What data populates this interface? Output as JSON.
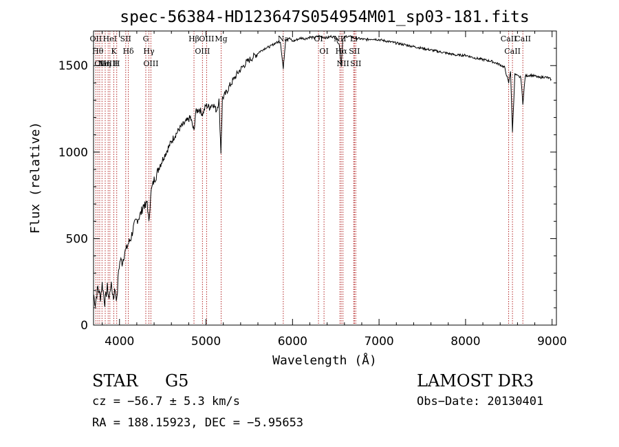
{
  "chart_data": {
    "type": "line",
    "title": "spec-56384-HD123647S054954M01_sp03-181.fits",
    "xlabel": "Wavelength (Å)",
    "ylabel": "Flux (relative)",
    "xlim": [
      3700,
      9050
    ],
    "ylim": [
      0,
      1700
    ],
    "xticks": [
      4000,
      5000,
      6000,
      7000,
      8000,
      9000
    ],
    "yticks": [
      0,
      500,
      1000,
      1500
    ],
    "series": [
      {
        "x": [
          3700,
          3720,
          3750,
          3780,
          3800,
          3830,
          3860,
          3880,
          3900,
          3930,
          3950,
          3970,
          3990,
          4010,
          4030,
          4060,
          4080,
          4100,
          4130,
          4160,
          4190,
          4220,
          4250,
          4280,
          4300,
          4320,
          4340,
          4360,
          4380,
          4400,
          4430,
          4460,
          4500,
          4540,
          4580,
          4620,
          4660,
          4700,
          4740,
          4780,
          4820,
          4861,
          4880,
          4920,
          4960,
          5000,
          5040,
          5080,
          5120,
          5150,
          5172,
          5190,
          5230,
          5270,
          5320,
          5370,
          5420,
          5470,
          5520,
          5570,
          5620,
          5680,
          5740,
          5800,
          5860,
          5893,
          5920,
          5960,
          6000,
          6050,
          6100,
          6150,
          6200,
          6250,
          6300,
          6350,
          6400,
          6450,
          6500,
          6540,
          6563,
          6580,
          6620,
          6680,
          6720,
          6780,
          6850,
          6920,
          7000,
          7100,
          7200,
          7300,
          7400,
          7500,
          7600,
          7700,
          7800,
          7900,
          8000,
          8100,
          8200,
          8300,
          8400,
          8450,
          8498,
          8520,
          8542,
          8570,
          8600,
          8640,
          8662,
          8690,
          8750,
          8800,
          8850,
          8900,
          8950,
          8990
        ],
        "y": [
          180,
          120,
          220,
          160,
          240,
          130,
          220,
          150,
          240,
          160,
          210,
          140,
          320,
          380,
          360,
          420,
          440,
          470,
          500,
          560,
          600,
          620,
          650,
          700,
          680,
          720,
          580,
          760,
          800,
          840,
          870,
          920,
          960,
          1000,
          1040,
          1080,
          1110,
          1140,
          1160,
          1180,
          1200,
          1120,
          1230,
          1250,
          1220,
          1270,
          1260,
          1280,
          1240,
          1300,
          1000,
          1310,
          1340,
          1380,
          1420,
          1460,
          1490,
          1520,
          1540,
          1560,
          1580,
          1600,
          1610,
          1630,
          1640,
          1480,
          1650,
          1660,
          1640,
          1650,
          1660,
          1655,
          1665,
          1660,
          1670,
          1665,
          1660,
          1670,
          1660,
          1620,
          1500,
          1650,
          1670,
          1665,
          1660,
          1655,
          1650,
          1655,
          1650,
          1640,
          1630,
          1620,
          1610,
          1600,
          1590,
          1580,
          1570,
          1560,
          1560,
          1545,
          1535,
          1525,
          1505,
          1490,
          1400,
          1470,
          1120,
          1450,
          1440,
          1430,
          1280,
          1440,
          1445,
          1440,
          1430,
          1435,
          1430,
          1420
        ]
      }
    ],
    "lines": [
      {
        "x": 3727,
        "label": "OII"
      },
      {
        "x": 3750,
        "label": "Hθ"
      },
      {
        "x": 3771,
        "label": ""
      },
      {
        "x": 3798,
        "label": "OIII"
      },
      {
        "x": 3835,
        "label": "Hη"
      },
      {
        "x": 3869,
        "label": "NeIII"
      },
      {
        "x": 3889,
        "label": "HeI"
      },
      {
        "x": 3934,
        "label": "K"
      },
      {
        "x": 3968,
        "label": "H"
      },
      {
        "x": 4072,
        "label": "SII"
      },
      {
        "x": 4102,
        "label": "Hδ"
      },
      {
        "x": 4304,
        "label": "G"
      },
      {
        "x": 4340,
        "label": "Hγ"
      },
      {
        "x": 4363,
        "label": "OIII"
      },
      {
        "x": 4861,
        "label": "Hβ"
      },
      {
        "x": 4959,
        "label": "OIII"
      },
      {
        "x": 5007,
        "label": "OIII"
      },
      {
        "x": 5175,
        "label": "Mg"
      },
      {
        "x": 5893,
        "label": "Na"
      },
      {
        "x": 6300,
        "label": "OI"
      },
      {
        "x": 6364,
        "label": "OI"
      },
      {
        "x": 6548,
        "label": "NII"
      },
      {
        "x": 6563,
        "label": "Hα"
      },
      {
        "x": 6583,
        "label": "NII"
      },
      {
        "x": 6707,
        "label": "Li"
      },
      {
        "x": 6716,
        "label": "SII"
      },
      {
        "x": 6731,
        "label": "SII"
      },
      {
        "x": 8498,
        "label": "CaII"
      },
      {
        "x": 8542,
        "label": "CaII"
      },
      {
        "x": 8662,
        "label": "CaII"
      }
    ]
  },
  "info": {
    "class": "STAR",
    "subclass": "G5",
    "survey": "LAMOST DR3",
    "cz": "cz = −56.7 ± 5.3 km/s",
    "obs_date": "Obs−Date: 20130401",
    "coords": "RA = 188.15923, DEC =  −5.95653"
  },
  "colors": {
    "line_markers": "#b22222",
    "spectrum": "#000000"
  }
}
